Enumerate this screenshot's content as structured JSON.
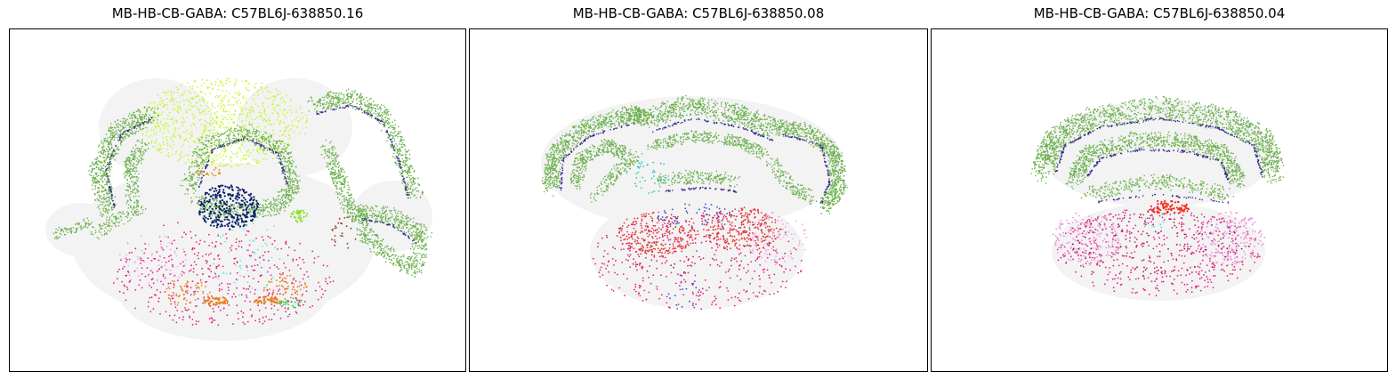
{
  "chart_data": [
    {
      "type": "scatter",
      "title": "MB-HB-CB-GABA: C57BL6J-638850.16",
      "xlabel": "",
      "ylabel": "",
      "axis_ticks": "none",
      "background_points_color": "#f2f2f2",
      "series": [
        {
          "label_id": "cerebellum-granule",
          "color": "#6ab04c"
        },
        {
          "label_id": "purkinje",
          "color": "#3a2d8c"
        },
        {
          "label_id": "midbrain-dorsal",
          "color": "#ccf542"
        },
        {
          "label_id": "hindbrain-pink",
          "color": "#e3237d"
        },
        {
          "label_id": "navy-cluster",
          "color": "#0a2266"
        },
        {
          "label_id": "orange",
          "color": "#e8801e"
        },
        {
          "label_id": "cyan",
          "color": "#5ff0d8"
        },
        {
          "label_id": "lightpink",
          "color": "#f0a6e8"
        },
        {
          "label_id": "lime",
          "color": "#88e022"
        },
        {
          "label_id": "red",
          "color": "#e83030"
        },
        {
          "label_id": "brown",
          "color": "#8b3a2a"
        },
        {
          "label_id": "green",
          "color": "#1fc43c"
        }
      ]
    },
    {
      "type": "scatter",
      "title": "MB-HB-CB-GABA: C57BL6J-638850.08",
      "xlabel": "",
      "ylabel": "",
      "axis_ticks": "none",
      "background_points_color": "#f2f2f2",
      "series": [
        {
          "label_id": "cerebellum-granule",
          "color": "#6ab04c"
        },
        {
          "label_id": "purkinje",
          "color": "#3a2d8c"
        },
        {
          "label_id": "red",
          "color": "#e83030"
        },
        {
          "label_id": "hindbrain-pink",
          "color": "#e3237d"
        },
        {
          "label_id": "lightpink",
          "color": "#f0a6e8"
        },
        {
          "label_id": "blue",
          "color": "#3048e8"
        },
        {
          "label_id": "cyan",
          "color": "#22c8c0"
        },
        {
          "label_id": "brown",
          "color": "#8b3a2a"
        }
      ]
    },
    {
      "type": "scatter",
      "title": "MB-HB-CB-GABA: C57BL6J-638850.04",
      "xlabel": "",
      "ylabel": "",
      "axis_ticks": "none",
      "background_points_color": "#f2f2f2",
      "series": [
        {
          "label_id": "cerebellum-granule",
          "color": "#6ab04c"
        },
        {
          "label_id": "purkinje",
          "color": "#3a2d8c"
        },
        {
          "label_id": "red",
          "color": "#f52a1a"
        },
        {
          "label_id": "hindbrain-pink",
          "color": "#e3237d"
        },
        {
          "label_id": "lightpink",
          "color": "#f08ee0"
        },
        {
          "label_id": "maroon",
          "color": "#9a1a4a"
        },
        {
          "label_id": "cyan",
          "color": "#40d8e8"
        }
      ]
    }
  ]
}
